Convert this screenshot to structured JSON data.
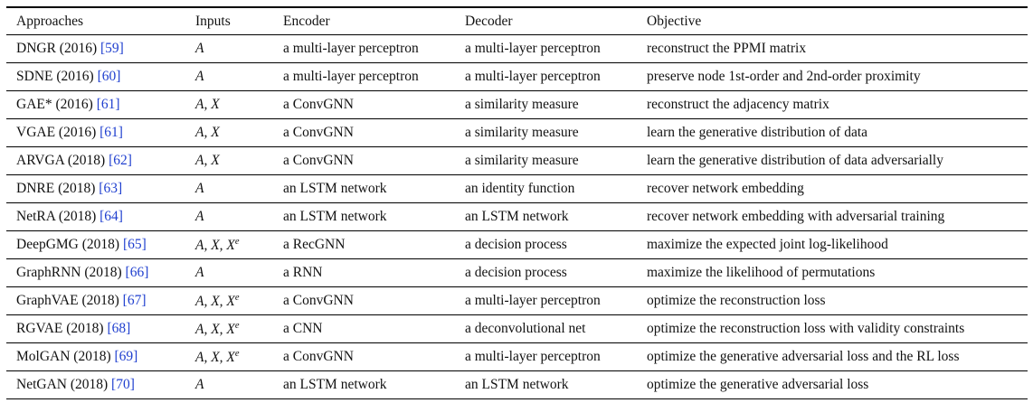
{
  "table": {
    "headers": [
      "Approaches",
      "Inputs",
      "Encoder",
      "Decoder",
      "Objective"
    ],
    "rows": [
      {
        "approach": "DNGR (2016)",
        "ref": "[59]",
        "inputs": "A",
        "encoder": "a multi-layer perceptron",
        "decoder": "a multi-layer perceptron",
        "objective": "reconstruct the PPMI matrix"
      },
      {
        "approach": "SDNE (2016)",
        "ref": "[60]",
        "inputs": "A",
        "encoder": "a multi-layer perceptron",
        "decoder": "a multi-layer perceptron",
        "objective": "preserve node 1st-order and 2nd-order proximity"
      },
      {
        "approach": "GAE* (2016)",
        "ref": "[61]",
        "inputs": "A, X",
        "encoder": "a ConvGNN",
        "decoder": "a similarity measure",
        "objective": "reconstruct the adjacency matrix"
      },
      {
        "approach": "VGAE (2016)",
        "ref": "[61]",
        "inputs": "A, X",
        "encoder": "a ConvGNN",
        "decoder": "a similarity measure",
        "objective": "learn the generative distribution of data"
      },
      {
        "approach": "ARVGA (2018)",
        "ref": "[62]",
        "inputs": "A, X",
        "encoder": "a ConvGNN",
        "decoder": "a similarity measure",
        "objective": "learn the generative distribution of data adversarially"
      },
      {
        "approach": "DNRE (2018)",
        "ref": "[63]",
        "inputs": "A",
        "encoder": "an LSTM network",
        "decoder": "an identity function",
        "objective": "recover network embedding"
      },
      {
        "approach": "NetRA (2018)",
        "ref": "[64]",
        "inputs": "A",
        "encoder": "an LSTM network",
        "decoder": "an LSTM network",
        "objective": "recover network embedding with adversarial training"
      },
      {
        "approach": "DeepGMG (2018)",
        "ref": "[65]",
        "inputs": "A, X, X",
        "inputs_sup": "e",
        "encoder": "a RecGNN",
        "decoder": "a decision process",
        "objective": "maximize the expected joint log-likelihood"
      },
      {
        "approach": "GraphRNN (2018)",
        "ref": "[66]",
        "inputs": "A",
        "encoder": "a RNN",
        "decoder": "a decision process",
        "objective": "maximize the likelihood of permutations"
      },
      {
        "approach": "GraphVAE (2018)",
        "ref": "[67]",
        "inputs": "A, X, X",
        "inputs_sup": "e",
        "encoder": "a ConvGNN",
        "decoder": "a multi-layer perceptron",
        "objective": "optimize the reconstruction loss"
      },
      {
        "approach": "RGVAE (2018)",
        "ref": "[68]",
        "inputs": "A, X, X",
        "inputs_sup": "e",
        "encoder": "a CNN",
        "decoder": "a deconvolutional net",
        "objective": "optimize the reconstruction loss with validity constraints"
      },
      {
        "approach": "MolGAN (2018)",
        "ref": "[69]",
        "inputs": "A, X, X",
        "inputs_sup": "e",
        "encoder": "a ConvGNN",
        "decoder": "a multi-layer perceptron",
        "objective": "optimize the generative adversarial loss and the RL loss"
      },
      {
        "approach": "NetGAN (2018)",
        "ref": "[70]",
        "inputs": "A",
        "encoder": "an LSTM network",
        "decoder": "an LSTM network",
        "objective": "optimize the generative adversarial loss"
      }
    ]
  },
  "colors": {
    "text": "#111111",
    "reference_link": "#1f3fcf",
    "rule": "#000000"
  }
}
